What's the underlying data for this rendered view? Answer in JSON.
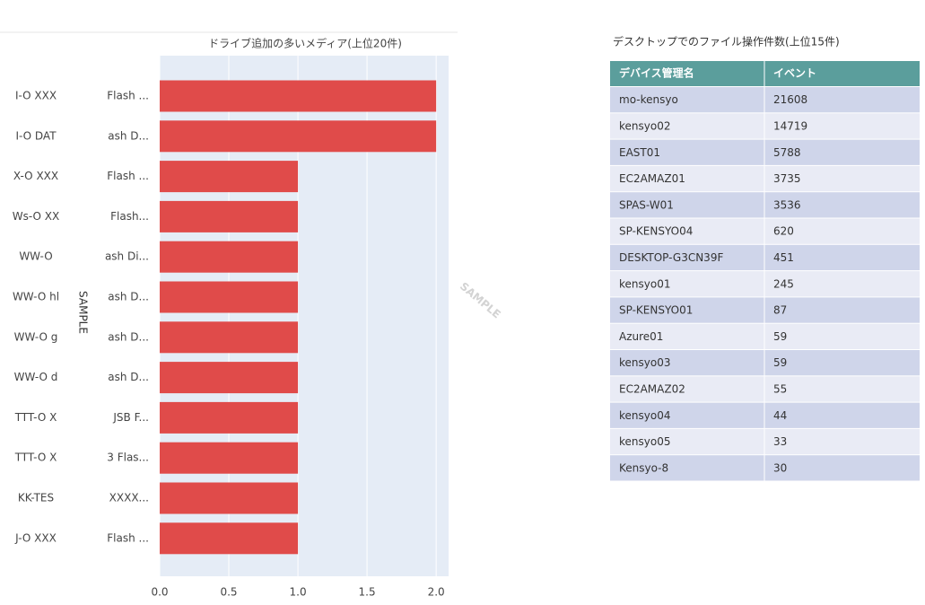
{
  "chart_data": {
    "type": "barh",
    "title": "ドライブ追加の多いメディア(上位20件)",
    "categories": [
      [
        "I-O XXX",
        "Flash ..."
      ],
      [
        "I-O DAT",
        "ash D..."
      ],
      [
        "X-O XXX",
        "Flash ..."
      ],
      [
        "Ws-O XX",
        "Flash..."
      ],
      [
        "WW-O",
        "ash Di..."
      ],
      [
        "WW-O hl",
        "ash D..."
      ],
      [
        "WW-O g",
        "ash D..."
      ],
      [
        "WW-O d",
        "ash D..."
      ],
      [
        "TTT-O X",
        "JSB F..."
      ],
      [
        "TTT-O X",
        "3 Flas..."
      ],
      [
        "KK-TES",
        "XXXX..."
      ],
      [
        "J-O XXX",
        "Flash ..."
      ]
    ],
    "values": [
      2,
      2,
      1,
      1,
      1,
      1,
      1,
      1,
      1,
      1,
      1,
      1
    ],
    "color": "#e04b4a",
    "xlim": [
      0,
      2.09
    ],
    "xticks": [
      {
        "value": 0,
        "label": "0.0"
      },
      0.5,
      {
        "value": 1,
        "label": "1.0"
      },
      1.5,
      {
        "value": 2,
        "label": "2.0"
      }
    ],
    "grid": true,
    "annotations": [
      "SAMPLE",
      "SAMPLE"
    ]
  },
  "table": {
    "title": "デスクトップでのファイル操作件数(上位15件)",
    "header": [
      "デバイス管理名",
      "イベント"
    ],
    "rows": [
      [
        "mo-kensyo",
        "21608"
      ],
      [
        "kensyo02",
        "14719"
      ],
      [
        "EAST01",
        "5788"
      ],
      [
        "EC2AMAZ01",
        "3735"
      ],
      [
        "SPAS-W01",
        "3536"
      ],
      [
        "SP-KENSYO04",
        "620"
      ],
      [
        "DESKTOP-G3CN39F",
        "451"
      ],
      [
        "kensyo01",
        "245"
      ],
      [
        "SP-KENSYO01",
        "87"
      ],
      [
        "Azure01",
        "59"
      ],
      [
        "kensyo03",
        "59"
      ],
      [
        "EC2AMAZ02",
        "55"
      ],
      [
        "kensyo04",
        "44"
      ],
      [
        "kensyo05",
        "33"
      ],
      [
        "Kensyo-8",
        "30"
      ]
    ]
  }
}
